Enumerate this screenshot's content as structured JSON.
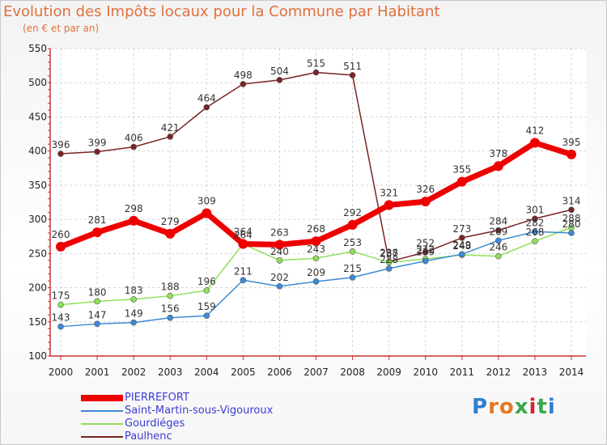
{
  "title": "Evolution des Impôts locaux pour la Commune par Habitant",
  "subtitle": "(en € et par an)",
  "brand": {
    "letters": [
      "P",
      "r",
      "o",
      "x",
      "i",
      "t",
      "i"
    ],
    "colors": [
      "#2e7fd1",
      "#e8761e",
      "#e8761e",
      "#3aa84c",
      "#d8202a",
      "#3aa84c",
      "#2e7fd1"
    ]
  },
  "chart_data": {
    "type": "line",
    "title": "Evolution des Impôts locaux pour la Commune par Habitant",
    "ylabel": "(en € et par an)",
    "xlabel": "",
    "categories": [
      "2000",
      "2001",
      "2002",
      "2003",
      "2004",
      "2005",
      "2006",
      "2007",
      "2008",
      "2009",
      "2010",
      "2011",
      "2012",
      "2013",
      "2014"
    ],
    "ylim": [
      100,
      550
    ],
    "yticks": [
      100,
      150,
      200,
      250,
      300,
      350,
      400,
      450,
      500,
      550
    ],
    "series": [
      {
        "name": "Paulhenc",
        "color": "#7a2323",
        "values": [
          396,
          399,
          406,
          421,
          464,
          498,
          504,
          515,
          511,
          238,
          252,
          273,
          284,
          301,
          314
        ],
        "labels": [
          "396",
          "399",
          "406",
          "421",
          "464",
          "498",
          "504",
          "515",
          "511",
          "238",
          "252",
          "273",
          "284",
          "301",
          "314"
        ]
      },
      {
        "name": "Gourdiéges",
        "color": "#8ee05a",
        "values": [
          175,
          180,
          183,
          188,
          196,
          264,
          240,
          243,
          253,
          237,
          242,
          248,
          246,
          268,
          288
        ],
        "labels": [
          "175",
          "180",
          "183",
          "188",
          "196",
          "264",
          "240",
          "243",
          "253",
          "237",
          "242",
          "248",
          "246",
          "268",
          "288"
        ]
      },
      {
        "name": "Saint-Martin-sous-Vigouroux",
        "color": "#3c8ad6",
        "values": [
          143,
          147,
          149,
          156,
          159,
          211,
          202,
          209,
          215,
          228,
          239,
          249,
          269,
          282,
          280
        ],
        "labels": [
          "143",
          "147",
          "149",
          "156",
          "159",
          "211",
          "202",
          "209",
          "215",
          "228",
          "239",
          "249",
          "269",
          "282",
          "280"
        ]
      },
      {
        "name": "PIERREFORT",
        "color": "#ee0000",
        "values": [
          260,
          281,
          298,
          279,
          309,
          264,
          263,
          268,
          292,
          321,
          326,
          355,
          378,
          412,
          395
        ],
        "labels": [
          "260",
          "281",
          "298",
          "279",
          "309",
          "264",
          "263",
          "268",
          "292",
          "321",
          "326",
          "355",
          "378",
          "412",
          "395"
        ]
      }
    ],
    "legend": [
      {
        "name": "PIERREFORT",
        "color": "#ee0000"
      },
      {
        "name": "Saint-Martin-sous-Vigouroux",
        "color": "#3c8ad6"
      },
      {
        "name": "Gourdiéges",
        "color": "#8ee05a"
      },
      {
        "name": "Paulhenc",
        "color": "#7a2323"
      }
    ]
  }
}
